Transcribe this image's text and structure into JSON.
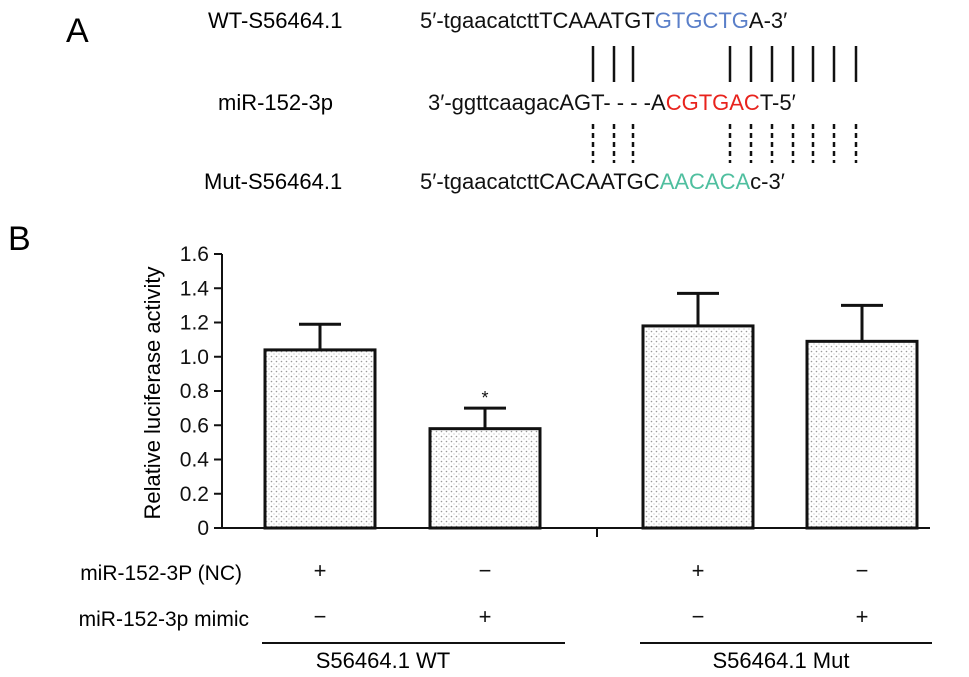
{
  "panel_a": {
    "label": "A",
    "rows": [
      {
        "name": "WT-S56464.1",
        "segments": [
          {
            "text": "5′-tgaacatctt",
            "color": "#111111"
          },
          {
            "text": "TCAAATGT",
            "color": "#111111"
          },
          {
            "text": "GTGCTG",
            "color": "#5a7fc9"
          },
          {
            "text": "A-3′",
            "color": "#111111"
          }
        ]
      },
      {
        "name": "miR-152-3p",
        "segments": [
          {
            "text": "3′-ggttcaagac",
            "color": "#111111"
          },
          {
            "text": "AGT-",
            "color": "#111111"
          },
          {
            "text": " - - -",
            "color": "#111111"
          },
          {
            "text": "A",
            "color": "#111111"
          },
          {
            "text": "CGTGAC",
            "color": "#e8231d"
          },
          {
            "text": "T-5′",
            "color": "#111111"
          }
        ]
      },
      {
        "name": "Mut-S56464.1",
        "segments": [
          {
            "text": "5′-tgaacatctt",
            "color": "#111111"
          },
          {
            "text": "CACAATGC",
            "color": "#111111"
          },
          {
            "text": "AACACA",
            "color": "#4fbf9f"
          },
          {
            "text": "c-3′",
            "color": "#111111"
          }
        ]
      }
    ]
  },
  "panel_b": {
    "label": "B",
    "condition_rows": [
      {
        "label": "miR-152-3P (NC)",
        "marks": [
          "+",
          "−",
          "+",
          "−"
        ]
      },
      {
        "label": "miR-152-3p mimic",
        "marks": [
          "−",
          "+",
          "−",
          "+"
        ]
      }
    ],
    "groups": [
      {
        "label": "S56464.1 WT"
      },
      {
        "label": "S56464.1 Mut"
      }
    ]
  },
  "chart_data": {
    "type": "bar",
    "title": "",
    "xlabel": "",
    "ylabel": "Relative luciferase activity",
    "ylim": [
      0,
      1.6
    ],
    "yticks": [
      "0",
      "0.2",
      "0.4",
      "0.6",
      "0.8",
      "1.0",
      "1.2",
      "1.4",
      "1.6"
    ],
    "categories": [
      "S56464.1 WT + miR-152-3P (NC)",
      "S56464.1 WT + miR-152-3p mimic",
      "S56464.1 Mut + miR-152-3P (NC)",
      "S56464.1 Mut + miR-152-3p mimic"
    ],
    "values": [
      1.04,
      0.58,
      1.18,
      1.09
    ],
    "errors": [
      0.15,
      0.12,
      0.19,
      0.21
    ],
    "annotations": [
      "",
      "*",
      "",
      ""
    ],
    "bar_fill": "dotted grey",
    "grid": false
  }
}
